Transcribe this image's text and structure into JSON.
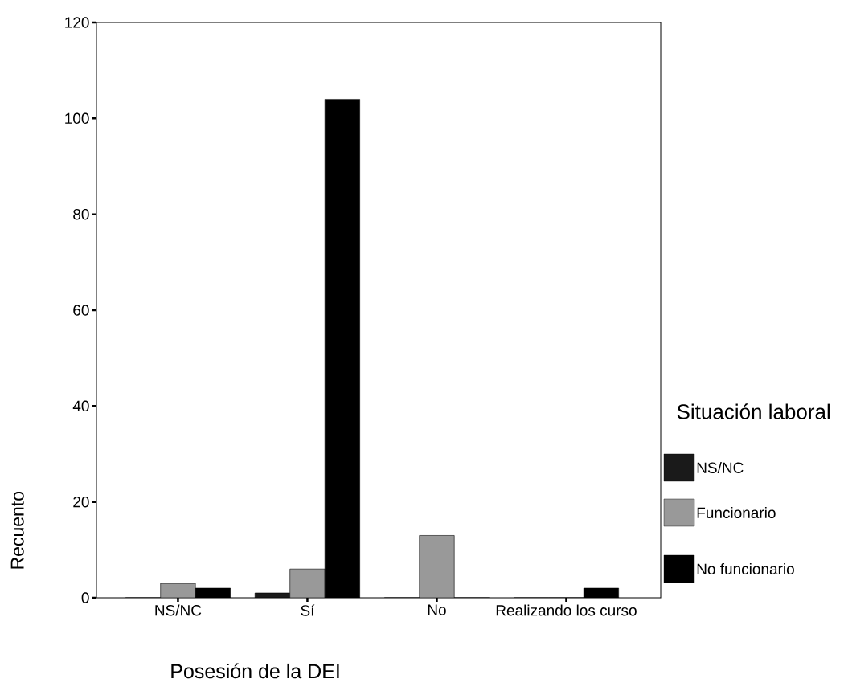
{
  "chart_data": {
    "type": "bar",
    "xlabel": "Posesión de la DEI",
    "ylabel": "Recuento",
    "legend_title": "Situación laboral",
    "categories": [
      "NS/NC",
      "Sí",
      "No",
      "Realizando los curso"
    ],
    "series": [
      {
        "name": "NS/NC",
        "color": "#1a1a1a",
        "values": [
          0,
          1,
          0,
          0
        ]
      },
      {
        "name": "Funcionario",
        "color": "#999999",
        "values": [
          3,
          6,
          13,
          0
        ]
      },
      {
        "name": "No funcionario",
        "color": "#000000",
        "values": [
          2,
          104,
          0,
          2
        ]
      }
    ],
    "ylim": [
      0,
      120
    ],
    "yticks": [
      0,
      20,
      40,
      60,
      80,
      100,
      120
    ],
    "grid": false,
    "legend": "right"
  }
}
